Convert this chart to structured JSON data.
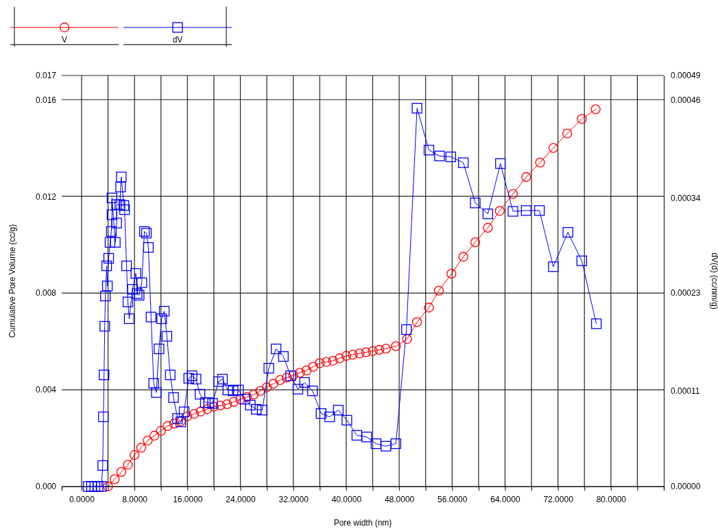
{
  "chart_data": {
    "type": "line",
    "xlabel": "Pore width (nm)",
    "ylabel": "Cumulative Pore Volume (cc/g)",
    "y2label": "dV(d) (cc/nm/g)",
    "xlim": [
      -3,
      88
    ],
    "xticks": [
      {
        "value": 0,
        "label": "0.0000"
      },
      {
        "value": 4,
        "label": null
      },
      {
        "value": 8,
        "label": "8.0000"
      },
      {
        "value": 12,
        "label": null
      },
      {
        "value": 16,
        "label": "16.0000"
      },
      {
        "value": 20,
        "label": null
      },
      {
        "value": 24,
        "label": "24.0000"
      },
      {
        "value": 28,
        "label": null
      },
      {
        "value": 32,
        "label": "32.0000"
      },
      {
        "value": 36,
        "label": null
      },
      {
        "value": 40,
        "label": "40.0000"
      },
      {
        "value": 44,
        "label": null
      },
      {
        "value": 48,
        "label": "48.0000"
      },
      {
        "value": 52,
        "label": null
      },
      {
        "value": 56,
        "label": "56.0000"
      },
      {
        "value": 60,
        "label": null
      },
      {
        "value": 64,
        "label": "64.0000"
      },
      {
        "value": 68,
        "label": null
      },
      {
        "value": 72,
        "label": "72.0000"
      },
      {
        "value": 76,
        "label": null
      },
      {
        "value": 80,
        "label": "80.0000"
      },
      {
        "value": 84,
        "label": null
      }
    ],
    "ylim": [
      0,
      0.017
    ],
    "yticks": [
      {
        "value": 0,
        "label": "0.000"
      },
      {
        "value": 0.004,
        "label": "0.004"
      },
      {
        "value": 0.008,
        "label": "0.008"
      },
      {
        "value": 0.012,
        "label": "0.012"
      },
      {
        "value": 0.016,
        "label": "0.016"
      },
      {
        "value": 0.017,
        "label": "0.017"
      }
    ],
    "y2lim": [
      0,
      0.00049
    ],
    "y2ticks": [
      {
        "value": 0,
        "label": "0.00000"
      },
      {
        "value": 0.000114,
        "label": "0.00011"
      },
      {
        "value": 0.000231,
        "label": "0.00023"
      },
      {
        "value": 0.000344,
        "label": "0.00034"
      },
      {
        "value": 0.000461,
        "label": "0.00046"
      },
      {
        "value": 0.00049,
        "label": "0.00049"
      }
    ],
    "grid": true,
    "legend": "top left",
    "series": [
      {
        "name": "V",
        "color": "#ff0000",
        "marker": "circle",
        "x": [
          4,
          5,
          6,
          7,
          8,
          9,
          10,
          11,
          12,
          13,
          14,
          15,
          16,
          17,
          18,
          19,
          20,
          21,
          22,
          23,
          24,
          25,
          26,
          27,
          28,
          29,
          30,
          31,
          32,
          33,
          34,
          35,
          36,
          37,
          38,
          39,
          40,
          41,
          42,
          43,
          44,
          45,
          46,
          47.5,
          49.2,
          50.7,
          52.5,
          54.0,
          55.9,
          57.7,
          59.5,
          61.4,
          63.2,
          65.2,
          67.2,
          69.3,
          71.3,
          73.4,
          75.6,
          77.7
        ],
        "values": [
          0,
          0.0003,
          0.0006,
          0.0009,
          0.0013,
          0.0016,
          0.0019,
          0.0021,
          0.0023,
          0.0025,
          0.0026,
          0.0027,
          0.0029,
          0.003,
          0.0031,
          0.0032,
          0.0033,
          0.00335,
          0.0034,
          0.0035,
          0.0036,
          0.0037,
          0.0038,
          0.00395,
          0.0041,
          0.00425,
          0.0044,
          0.0045,
          0.0046,
          0.0047,
          0.0048,
          0.00495,
          0.0051,
          0.00515,
          0.0052,
          0.0053,
          0.0054,
          0.00545,
          0.0055,
          0.00555,
          0.0056,
          0.00565,
          0.0057,
          0.0058,
          0.0061,
          0.0068,
          0.0074,
          0.0081,
          0.0088,
          0.0095,
          0.0101,
          0.0107,
          0.0114,
          0.0121,
          0.0128,
          0.0134,
          0.014,
          0.0146,
          0.0152,
          0.0156
        ]
      },
      {
        "name": "dV",
        "color": "#0000ff",
        "marker": "square",
        "axis": "y2",
        "x": [
          1.0,
          1.5,
          2.0,
          2.5,
          3.0,
          3.2,
          3.3,
          3.4,
          3.5,
          3.6,
          3.8,
          3.9,
          4.1,
          4.3,
          4.5,
          4.6,
          4.6,
          5.1,
          5.3,
          5.3,
          5.8,
          5.9,
          6.0,
          6.4,
          6.5,
          6.8,
          7.0,
          7.2,
          7.7,
          8.2,
          8.4,
          8.7,
          9.1,
          9.5,
          9.8,
          10.1,
          10.5,
          10.9,
          11.3,
          11.7,
          12.1,
          12.5,
          12.9,
          13.4,
          13.9,
          14.5,
          15.0,
          15.5,
          16.2,
          16.7,
          17.3,
          17.9,
          18.7,
          19.2,
          19.8,
          20.7,
          21.3,
          22.1,
          22.9,
          23.7,
          24.7,
          25.5,
          26.4,
          27.3,
          28.3,
          29.4,
          30.5,
          31.6,
          32.7,
          33.7,
          34.9,
          36.2,
          37.5,
          38.8,
          40.1,
          41.6,
          43.1,
          44.5,
          46.0,
          47.5,
          49.1,
          50.7,
          52.5,
          54.1,
          55.8,
          57.7,
          59.5,
          61.4,
          63.3,
          65.2,
          67.2,
          69.2,
          71.3,
          73.5,
          75.6,
          77.8
        ],
        "values": [
          0,
          0,
          0,
          0,
          0,
          2.5e-05,
          8.3e-05,
          0.000133,
          0.000191,
          0.000227,
          0.000263,
          0.000239,
          0.000272,
          0.000291,
          0.000304,
          0.000324,
          0.000344,
          0.000291,
          0.000314,
          0.000336,
          0.000336,
          0.000357,
          0.000369,
          0.000335,
          0.00033,
          0.000263,
          0.00022,
          0.0002,
          0.000235,
          0.000254,
          0.00023,
          0.000228,
          0.000243,
          0.000304,
          0.000302,
          0.000285,
          0.000202,
          0.000123,
          0.000112,
          0.000164,
          0.0002,
          0.000209,
          0.000179,
          0.000133,
          0.000106,
          8.1e-05,
          7.7e-05,
          8.9e-05,
          0.000129,
          0.000132,
          0.000128,
          0.00011,
          0.0001,
          0.0001,
          9.9e-05,
          0.000125,
          0.000128,
          0.000115,
          0.000114,
          0.000115,
          0.000104,
          9.7e-05,
          9.2e-05,
          9.1e-05,
          0.000141,
          0.000164,
          0.000155,
          0.000132,
          0.000116,
          0.000124,
          0.000114,
          8.7e-05,
          8.3e-05,
          9.1e-05,
          7.9e-05,
          6.1e-05,
          5.9e-05,
          5.1e-05,
          4.8e-05,
          5.1e-05,
          0.000187,
          0.000451,
          0.000401,
          0.000394,
          0.000393,
          0.000386,
          0.000338,
          0.000325,
          0.000385,
          0.000328,
          0.000329,
          0.000329,
          0.000262,
          0.000303,
          0.000269,
          0.000194
        ]
      }
    ]
  }
}
